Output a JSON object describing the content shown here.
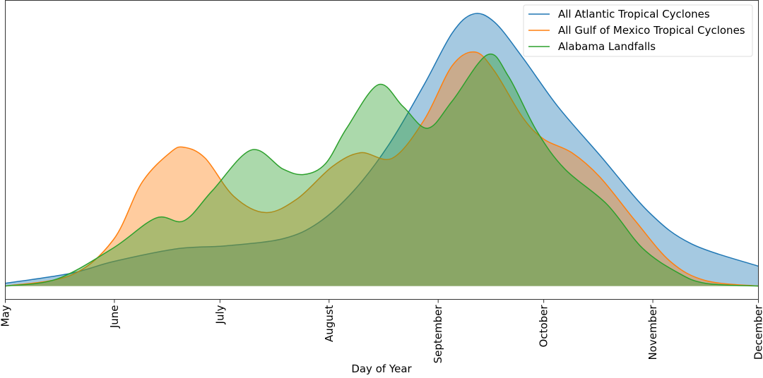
{
  "chart_data": {
    "type": "area",
    "title": "",
    "xlabel": "Day of Year",
    "ylabel": "",
    "xlim": [
      121,
      335
    ],
    "ylim": [
      -0.049,
      1.05
    ],
    "grid": false,
    "legend_placement": "top-right",
    "x_ticks": [
      {
        "day": 121,
        "label": "May"
      },
      {
        "day": 152,
        "label": "June"
      },
      {
        "day": 182,
        "label": "July"
      },
      {
        "day": 213,
        "label": "August"
      },
      {
        "day": 244,
        "label": "September"
      },
      {
        "day": 274,
        "label": "October"
      },
      {
        "day": 305,
        "label": "November"
      },
      {
        "day": 335,
        "label": "December"
      }
    ],
    "series": [
      {
        "name": "All Atlantic Tropical Cyclones",
        "color": "#1f77b4",
        "points": [
          [
            121,
            0.01
          ],
          [
            139.7,
            0.047
          ],
          [
            151.7,
            0.09
          ],
          [
            169.8,
            0.137
          ],
          [
            183.9,
            0.148
          ],
          [
            199.9,
            0.174
          ],
          [
            210,
            0.233
          ],
          [
            220,
            0.35
          ],
          [
            230,
            0.52
          ],
          [
            240,
            0.74
          ],
          [
            248,
            0.93
          ],
          [
            254,
            1.0
          ],
          [
            260,
            0.97
          ],
          [
            268,
            0.84
          ],
          [
            278,
            0.66
          ],
          [
            290,
            0.48
          ],
          [
            304,
            0.27
          ],
          [
            316,
            0.155
          ],
          [
            335,
            0.073
          ]
        ]
      },
      {
        "name": "All Gulf of Mexico Tropical Cyclones",
        "color": "#ff7f0e",
        "points": [
          [
            121,
            0
          ],
          [
            139.7,
            0.04
          ],
          [
            151.7,
            0.17
          ],
          [
            159.8,
            0.38
          ],
          [
            167.8,
            0.49
          ],
          [
            171.8,
            0.51
          ],
          [
            177.8,
            0.47
          ],
          [
            185.9,
            0.33
          ],
          [
            194.9,
            0.27
          ],
          [
            203.9,
            0.32
          ],
          [
            214,
            0.44
          ],
          [
            222,
            0.49
          ],
          [
            231,
            0.47
          ],
          [
            240,
            0.61
          ],
          [
            248,
            0.81
          ],
          [
            254.5,
            0.86
          ],
          [
            260,
            0.79
          ],
          [
            268,
            0.62
          ],
          [
            274,
            0.54
          ],
          [
            282,
            0.49
          ],
          [
            290,
            0.4
          ],
          [
            300,
            0.24
          ],
          [
            310,
            0.09
          ],
          [
            320,
            0.02
          ],
          [
            335,
            0
          ]
        ]
      },
      {
        "name": "Alabama Landfalls",
        "color": "#2ca02c",
        "points": [
          [
            121,
            0
          ],
          [
            135.7,
            0.026
          ],
          [
            151.7,
            0.14
          ],
          [
            163.8,
            0.25
          ],
          [
            171.8,
            0.24
          ],
          [
            179.8,
            0.35
          ],
          [
            190.9,
            0.5
          ],
          [
            199.9,
            0.43
          ],
          [
            205.9,
            0.41
          ],
          [
            212,
            0.45
          ],
          [
            218,
            0.58
          ],
          [
            227,
            0.74
          ],
          [
            234,
            0.66
          ],
          [
            241,
            0.58
          ],
          [
            248,
            0.68
          ],
          [
            258,
            0.85
          ],
          [
            264,
            0.77
          ],
          [
            272,
            0.57
          ],
          [
            280,
            0.43
          ],
          [
            292,
            0.3
          ],
          [
            302,
            0.14
          ],
          [
            312,
            0.05
          ],
          [
            320,
            0.01
          ],
          [
            335,
            0
          ]
        ]
      }
    ]
  }
}
